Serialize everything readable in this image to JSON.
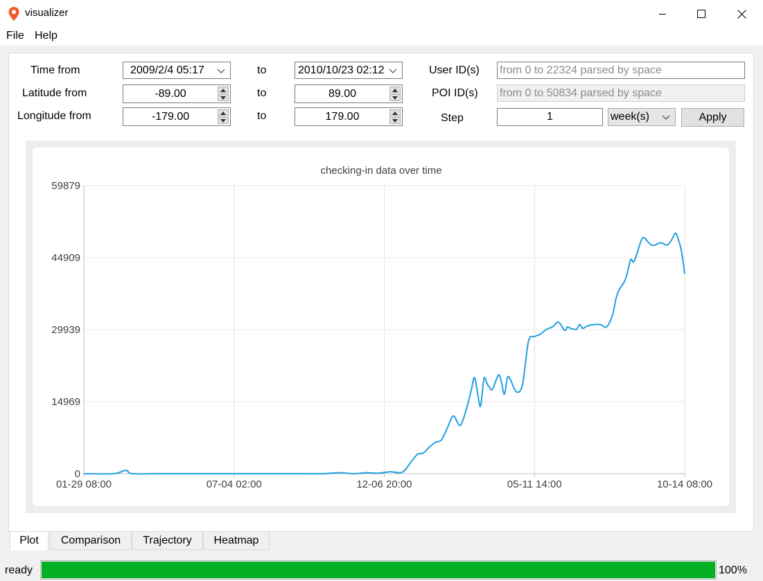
{
  "window": {
    "title": "visualizer",
    "icon": "location-pin-icon",
    "controls": [
      "minimize-icon",
      "maximize-icon",
      "close-icon"
    ]
  },
  "menu": {
    "file": "File",
    "help": "Help"
  },
  "filters": {
    "time_from_label": "Time from",
    "time_from_value": "2009/2/4 05:17",
    "time_to_label": "to",
    "time_to_value": "2010/10/23 02:12",
    "lat_from_label": "Latitude from",
    "lat_from_value": "-89.00",
    "lat_to_label": "to",
    "lat_to_value": "89.00",
    "lon_from_label": "Longitude from",
    "lon_from_value": "-179.00",
    "lon_to_label": "to",
    "lon_to_value": "179.00",
    "user_ids_label": "User ID(s)",
    "user_ids_placeholder": "from 0 to 22324 parsed by space",
    "poi_ids_label": "POI ID(s)",
    "poi_ids_placeholder": "from 0 to 50834 parsed by space",
    "step_label": "Step",
    "step_value": "1",
    "step_unit": "week(s)",
    "apply_label": "Apply"
  },
  "chart_data": {
    "type": "line",
    "title": "checking-in data over time",
    "xlabel": "",
    "ylabel": "",
    "xticks": [
      "01-29 08:00",
      "07-04 02:00",
      "12-06 20:00",
      "05-11 14:00",
      "10-14 08:00"
    ],
    "yticks": [
      0,
      14969,
      29939,
      44909,
      59879
    ],
    "ylim": [
      0,
      59879
    ],
    "xlim": [
      0,
      1
    ],
    "grid": true,
    "legend": "none",
    "color": "#209fdf",
    "series": [
      {
        "x": [
          0.0,
          0.05,
          0.07,
          0.08,
          0.12,
          0.18,
          0.25,
          0.3,
          0.35,
          0.4,
          0.425,
          0.45,
          0.47,
          0.49,
          0.51,
          0.53,
          0.545,
          0.555,
          0.565,
          0.575,
          0.585,
          0.595,
          0.605,
          0.615,
          0.625,
          0.632,
          0.64,
          0.645,
          0.65,
          0.655,
          0.66,
          0.665,
          0.667,
          0.672,
          0.675,
          0.68,
          0.69,
          0.695,
          0.7,
          0.705,
          0.71,
          0.72,
          0.73,
          0.74,
          0.75,
          0.76,
          0.77,
          0.78,
          0.79,
          0.8,
          0.805,
          0.81,
          0.82,
          0.825,
          0.83,
          0.835,
          0.84,
          0.85,
          0.86,
          0.87,
          0.88,
          0.885,
          0.89,
          0.9,
          0.905,
          0.91,
          0.915,
          0.92,
          0.93,
          0.94,
          0.945,
          0.95,
          0.96,
          0.97,
          0.975,
          0.98,
          0.985,
          0.99,
          0.995,
          1.0
        ],
        "y": [
          0,
          0,
          700,
          0,
          0,
          0,
          0,
          0,
          0,
          0,
          200,
          0,
          200,
          100,
          400,
          300,
          2500,
          4000,
          4300,
          5500,
          6500,
          7000,
          9500,
          12000,
          10000,
          11500,
          15000,
          17500,
          20000,
          17000,
          14000,
          19000,
          20000,
          18500,
          18000,
          17500,
          20500,
          19000,
          16500,
          20000,
          19500,
          17000,
          18500,
          27500,
          28500,
          29000,
          30000,
          30500,
          31500,
          29800,
          30500,
          30200,
          30000,
          31000,
          30200,
          30500,
          30800,
          31000,
          31000,
          30500,
          33000,
          36000,
          38000,
          40000,
          42000,
          44500,
          44000,
          45500,
          49000,
          48000,
          47500,
          47500,
          48000,
          47500,
          48000,
          49000,
          50000,
          48500,
          46000,
          41500
        ]
      }
    ]
  },
  "tabs": {
    "plot": "Plot",
    "comparison": "Comparison",
    "trajectory": "Trajectory",
    "heatmap": "Heatmap"
  },
  "status": {
    "text": "ready",
    "progress": 1.0,
    "progress_label": "100%",
    "progress_color": "#06b025"
  }
}
